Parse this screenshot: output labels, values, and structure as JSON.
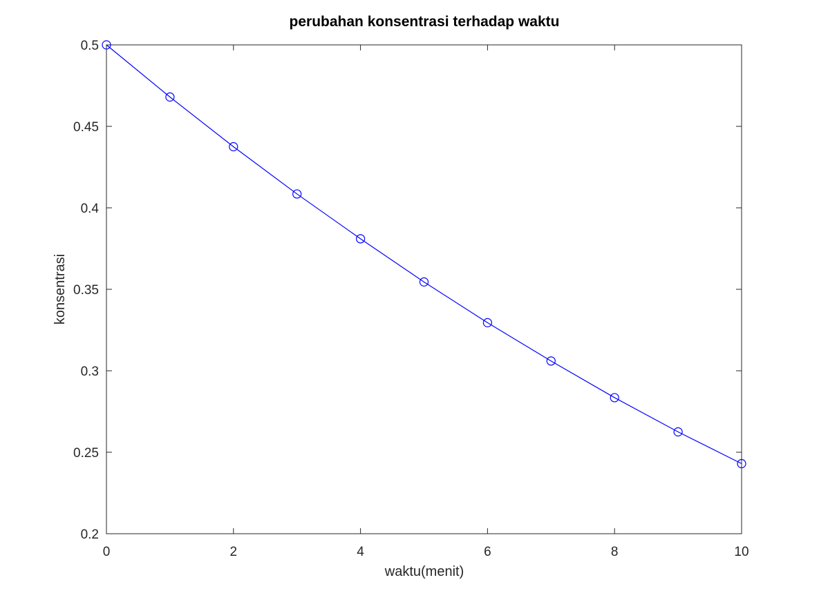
{
  "chart_data": {
    "type": "line",
    "title": "perubahan konsentrasi terhadap waktu",
    "xlabel": "waktu(menit)",
    "ylabel": "konsentrasi",
    "xlim": [
      0,
      10
    ],
    "ylim": [
      0.2,
      0.5
    ],
    "x_ticks": [
      "0",
      "2",
      "4",
      "6",
      "8",
      "10"
    ],
    "y_ticks": [
      "0.2",
      "0.25",
      "0.3",
      "0.35",
      "0.4",
      "0.45",
      "0.5"
    ],
    "grid": false,
    "series": [
      {
        "marker": "circle",
        "color": "#0000ff",
        "x": [
          0,
          1,
          2,
          3,
          4,
          5,
          6,
          7,
          8,
          9,
          10
        ],
        "y": [
          0.5,
          0.468,
          0.4375,
          0.4085,
          0.381,
          0.3545,
          0.3295,
          0.306,
          0.2835,
          0.2625,
          0.243
        ]
      }
    ],
    "colors": {
      "axis": "#262626",
      "background": "#ffffff"
    }
  }
}
